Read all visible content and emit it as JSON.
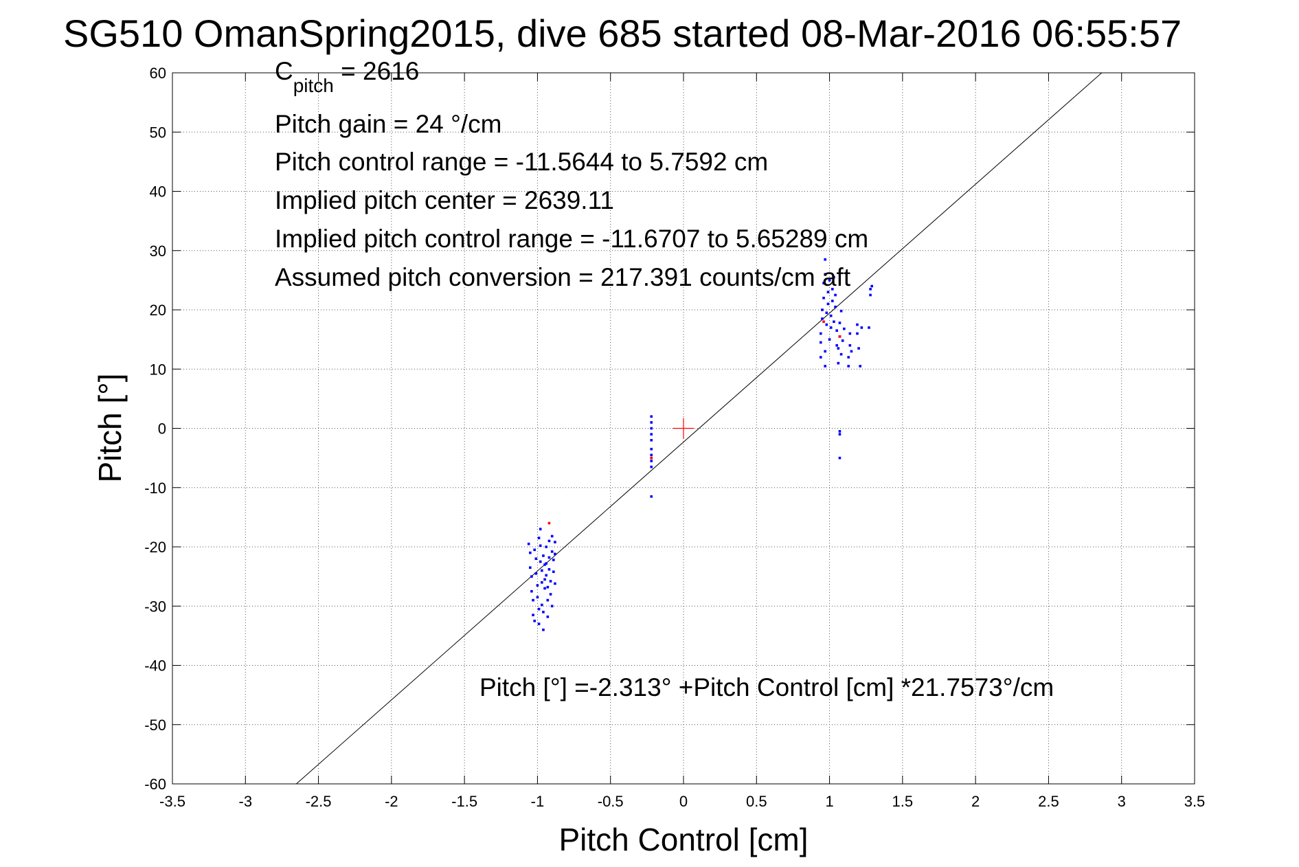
{
  "chart_data": {
    "type": "scatter",
    "title": "SG510 OmanSpring2015, dive 685 started 08-Mar-2016 06:55:57",
    "xlabel": "Pitch Control [cm]",
    "ylabel": "Pitch [°]",
    "xlim": [
      -3.5,
      3.5
    ],
    "ylim": [
      -60,
      60
    ],
    "xticks": [
      -3.5,
      -3,
      -2.5,
      -2,
      -1.5,
      -1,
      -0.5,
      0,
      0.5,
      1,
      1.5,
      2,
      2.5,
      3,
      3.5
    ],
    "yticks": [
      -60,
      -50,
      -40,
      -30,
      -20,
      -10,
      0,
      10,
      20,
      30,
      40,
      50,
      60
    ],
    "xtick_labels": [
      "-3.5",
      "-3",
      "-2.5",
      "-2",
      "-1.5",
      "-1",
      "-0.5",
      "0",
      "0.5",
      "1",
      "1.5",
      "2",
      "2.5",
      "3",
      "3.5"
    ],
    "ytick_labels": [
      "-60",
      "-50",
      "-40",
      "-30",
      "-20",
      "-10",
      "0",
      "10",
      "20",
      "30",
      "40",
      "50",
      "60"
    ],
    "grid": true,
    "colors": {
      "points": "#0000ff",
      "flagged": "#ff0000",
      "fit": "#000000",
      "center": "#ff0000"
    },
    "annotations": {
      "c_pitch_main": "C",
      "c_pitch_sub": "pitch",
      "c_pitch_value": " = 2616",
      "pitch_gain": "Pitch gain = 24 °/cm",
      "pitch_control_range": "Pitch control range = -11.5644 to 5.7592 cm",
      "implied_pitch_center": "Implied pitch center = 2639.11",
      "implied_pitch_control_range": "Implied pitch control range = -11.6707 to 5.65289 cm",
      "assumed_pitch_conversion": "Assumed pitch conversion = 217.391 counts/cm aft",
      "fit_equation": "Pitch [°] =-2.313° +Pitch Control [cm] *21.7573°/cm"
    },
    "fit_line": {
      "intercept": -2.313,
      "slope": 21.7573
    },
    "center_marker": {
      "x": 0,
      "y": 0
    },
    "series": [
      {
        "values": [
          [
            -1.06,
            -19.5
          ],
          [
            -1.05,
            -21.0
          ],
          [
            -1.05,
            -23.5
          ],
          [
            -1.04,
            -25.0
          ],
          [
            -1.04,
            -27.5
          ],
          [
            -1.03,
            -29.0
          ],
          [
            -1.03,
            -31.5
          ],
          [
            -1.02,
            -32.5
          ],
          [
            -1.02,
            -20.5
          ],
          [
            -1.01,
            -22.0
          ],
          [
            -1.01,
            -24.5
          ],
          [
            -1.0,
            -26.5
          ],
          [
            -1.0,
            -28.5
          ],
          [
            -0.99,
            -30.5
          ],
          [
            -0.99,
            -33.0
          ],
          [
            -0.99,
            -18.5
          ],
          [
            -0.98,
            -17.0
          ],
          [
            -0.98,
            -19.8
          ],
          [
            -0.98,
            -22.5
          ],
          [
            -0.97,
            -24.0
          ],
          [
            -0.97,
            -26.0
          ],
          [
            -0.97,
            -29.8
          ],
          [
            -0.96,
            -31.0
          ],
          [
            -0.96,
            -34.0
          ],
          [
            -0.96,
            -21.5
          ],
          [
            -0.95,
            -23.0
          ],
          [
            -0.95,
            -25.5
          ],
          [
            -0.95,
            -27.0
          ],
          [
            -0.94,
            -20.0
          ],
          [
            -0.94,
            -22.8
          ],
          [
            -0.94,
            -24.8
          ],
          [
            -0.93,
            -26.8
          ],
          [
            -0.93,
            -29.0
          ],
          [
            -0.93,
            -31.8
          ],
          [
            -0.92,
            -19.0
          ],
          [
            -0.92,
            -21.8
          ],
          [
            -0.92,
            -23.8
          ],
          [
            -0.91,
            -25.8
          ],
          [
            -0.91,
            -28.0
          ],
          [
            -0.9,
            -30.0
          ],
          [
            -0.9,
            -18.2
          ],
          [
            -0.9,
            -20.8
          ],
          [
            -0.89,
            -22.2
          ],
          [
            -0.89,
            -24.2
          ],
          [
            -0.88,
            -26.2
          ],
          [
            -0.88,
            -19.2
          ],
          [
            -0.88,
            -21.2
          ],
          [
            -0.22,
            2.0
          ],
          [
            -0.22,
            1.0
          ],
          [
            -0.22,
            0.0
          ],
          [
            -0.22,
            -1.0
          ],
          [
            -0.22,
            -2.0
          ],
          [
            -0.22,
            -3.5
          ],
          [
            -0.22,
            -4.5
          ],
          [
            -0.22,
            -5.5
          ],
          [
            -0.22,
            -6.5
          ],
          [
            -0.22,
            -11.5
          ],
          [
            0.94,
            12.0
          ],
          [
            0.94,
            14.5
          ],
          [
            0.94,
            16.0
          ],
          [
            0.95,
            18.5
          ],
          [
            0.95,
            20.0
          ],
          [
            0.96,
            22.0
          ],
          [
            0.96,
            24.5
          ],
          [
            0.97,
            26.0
          ],
          [
            0.97,
            28.5
          ],
          [
            0.97,
            10.5
          ],
          [
            0.97,
            13.0
          ],
          [
            0.98,
            17.5
          ],
          [
            0.98,
            19.5
          ],
          [
            0.99,
            21.0
          ],
          [
            0.99,
            23.0
          ],
          [
            1.0,
            25.0
          ],
          [
            1.0,
            15.0
          ],
          [
            1.01,
            17.0
          ],
          [
            1.01,
            19.0
          ],
          [
            1.02,
            21.5
          ],
          [
            1.02,
            23.5
          ],
          [
            1.03,
            25.5
          ],
          [
            1.03,
            18.0
          ],
          [
            1.04,
            20.5
          ],
          [
            1.04,
            22.5
          ],
          [
            1.05,
            14.0
          ],
          [
            1.05,
            16.5
          ],
          [
            1.06,
            11.0
          ],
          [
            1.06,
            13.5
          ],
          [
            1.07,
            15.5
          ],
          [
            1.07,
            17.8
          ],
          [
            1.08,
            19.8
          ],
          [
            1.08,
            12.5
          ],
          [
            1.09,
            14.8
          ],
          [
            1.1,
            16.8
          ],
          [
            1.07,
            -0.5
          ],
          [
            1.07,
            -1.0
          ],
          [
            1.07,
            -5.0
          ],
          [
            1.13,
            10.5
          ],
          [
            1.13,
            12.0
          ],
          [
            1.14,
            14.0
          ],
          [
            1.14,
            16.0
          ],
          [
            1.15,
            13.0
          ],
          [
            1.19,
            16.0
          ],
          [
            1.19,
            17.5
          ],
          [
            1.2,
            13.5
          ],
          [
            1.21,
            10.5
          ],
          [
            1.22,
            17.0
          ],
          [
            1.27,
            17.0
          ],
          [
            1.28,
            22.5
          ],
          [
            1.28,
            23.5
          ],
          [
            1.29,
            24.0
          ]
        ]
      },
      {
        "values": [
          [
            -0.92,
            -16.0
          ],
          [
            -0.22,
            -5.0
          ],
          [
            1.07,
            15.5
          ],
          [
            0.96,
            18.0
          ]
        ]
      }
    ]
  }
}
